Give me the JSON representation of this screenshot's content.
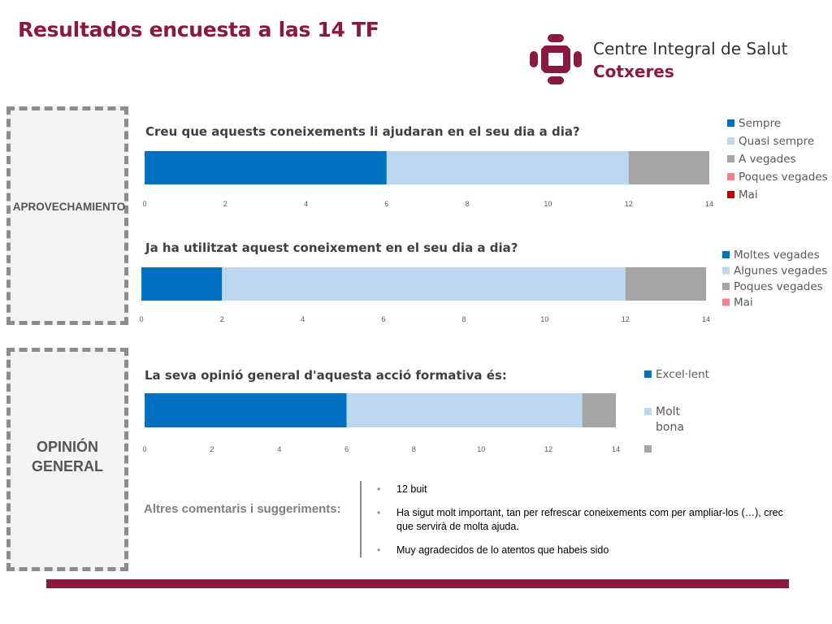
{
  "header": {
    "title": "Resultados encuesta a las 14 TF",
    "logo_line1": "Centre Integral de Salut",
    "logo_line2": "Cotxeres"
  },
  "sections": {
    "aprovechamiento": "APROVECHAMIENTO",
    "opinion_line1": "OPINIÓN",
    "opinion_line2": "GENERAL"
  },
  "colors": {
    "brand": "#8a1a3d",
    "series": [
      "#0070c0",
      "#bdd7ee",
      "#a5a5a5",
      "#f4808a",
      "#c00000"
    ]
  },
  "chart_data": [
    {
      "type": "bar",
      "orientation": "horizontal",
      "stacked": true,
      "title": "Creu que aquests coneixements li ajudaran en el seu dia a dia?",
      "xlim": [
        0,
        14
      ],
      "xticks": [
        0,
        2,
        4,
        6,
        8,
        10,
        12,
        14
      ],
      "legend_position": "right",
      "series": [
        {
          "name": "Sempre",
          "value": 6,
          "color": "#0070c0"
        },
        {
          "name": "Quasi sempre",
          "value": 6,
          "color": "#bdd7ee"
        },
        {
          "name": "A vegades",
          "value": 2,
          "color": "#a5a5a5"
        },
        {
          "name": "Poques vegades",
          "value": 0,
          "color": "#f4808a"
        },
        {
          "name": "Mai",
          "value": 0,
          "color": "#c00000"
        }
      ]
    },
    {
      "type": "bar",
      "orientation": "horizontal",
      "stacked": true,
      "title": "Ja ha utilitzat aquest coneixement en el seu dia a dia?",
      "xlim": [
        0,
        14
      ],
      "xticks": [
        0,
        2,
        4,
        6,
        8,
        10,
        12,
        14
      ],
      "legend_position": "right",
      "series": [
        {
          "name": "Moltes vegades",
          "value": 2,
          "color": "#0070c0"
        },
        {
          "name": "Algunes vegades",
          "value": 10,
          "color": "#bdd7ee"
        },
        {
          "name": "Poques vegades",
          "value": 2,
          "color": "#a5a5a5"
        },
        {
          "name": "Mai",
          "value": 0,
          "color": "#f4808a"
        }
      ]
    },
    {
      "type": "bar",
      "orientation": "horizontal",
      "stacked": true,
      "title": "La seva opinió general d'aquesta acció formativa és:",
      "xlim": [
        0,
        14
      ],
      "xticks": [
        0,
        2,
        4,
        6,
        8,
        10,
        12,
        14
      ],
      "legend_position": "right",
      "series": [
        {
          "name": "Excel·lent",
          "value": 6,
          "color": "#0070c0"
        },
        {
          "name": "Molt bona",
          "value": 7,
          "color": "#bdd7ee"
        },
        {
          "name": "",
          "value": 1,
          "color": "#a5a5a5"
        }
      ]
    }
  ],
  "comments": {
    "label": "Altres comentaris i suggeriments:",
    "items": [
      "12 buit",
      "Ha sigut molt important, tan per refrescar coneixements com per ampliar-los (…), crec que servirà de molta ajuda.",
      "Muy agradecidos de lo atentos que habeis sido"
    ]
  }
}
